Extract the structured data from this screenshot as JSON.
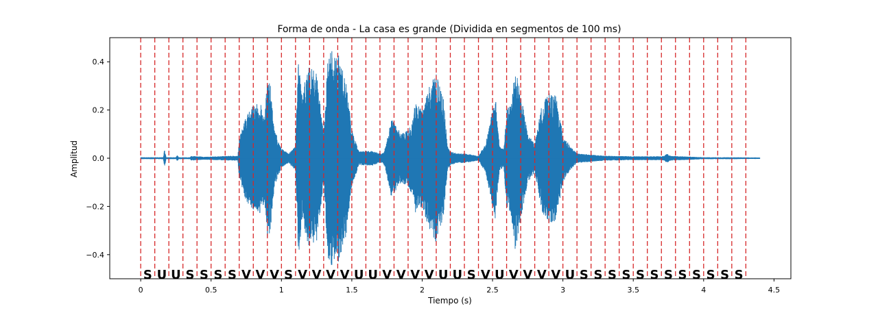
{
  "chart_data": {
    "type": "line",
    "title": "Forma de onda - La casa es grande (Dividida en segmentos de 100 ms)",
    "xlabel": "Tiempo (s)",
    "ylabel": "Amplitud",
    "xlim": [
      -0.22,
      4.62
    ],
    "ylim": [
      -0.5,
      0.5
    ],
    "xticks": [
      0,
      0.5,
      1,
      1.5,
      2,
      2.5,
      3,
      3.5,
      4,
      4.5
    ],
    "xtick_labels": [
      "0",
      "0.5",
      "1",
      "1.5",
      "2",
      "2.5",
      "3",
      "3.5",
      "4",
      "4.5"
    ],
    "yticks": [
      -0.4,
      -0.2,
      0.0,
      0.2,
      0.4
    ],
    "ytick_labels": [
      "−0.4",
      "−0.2",
      "0.0",
      "0.2",
      "0.4"
    ],
    "grid": false,
    "waveform_color": "#1f77b4",
    "segment_line_color": "#d62728",
    "segment_boundaries": [
      0,
      0.1,
      0.2,
      0.3,
      0.4,
      0.5,
      0.6,
      0.7,
      0.8,
      0.9,
      1.0,
      1.1,
      1.2,
      1.3,
      1.4,
      1.5,
      1.6,
      1.7,
      1.8,
      1.9,
      2.0,
      2.1,
      2.2,
      2.3,
      2.4,
      2.5,
      2.6,
      2.7,
      2.8,
      2.9,
      3.0,
      3.1,
      3.2,
      3.3,
      3.4,
      3.5,
      3.6,
      3.7,
      3.8,
      3.9,
      4.0,
      4.1,
      4.2,
      4.3
    ],
    "segment_labels": [
      "S",
      "U",
      "U",
      "S",
      "S",
      "S",
      "S",
      "V",
      "V",
      "V",
      "S",
      "V",
      "V",
      "V",
      "V",
      "U",
      "U",
      "V",
      "V",
      "V",
      "V",
      "U",
      "U",
      "S",
      "V",
      "U",
      "V",
      "V",
      "V",
      "V",
      "U",
      "S",
      "S",
      "S",
      "S",
      "S",
      "S",
      "S",
      "S",
      "S",
      "S",
      "S",
      "S"
    ],
    "envelope": {
      "t": [
        0,
        0.16,
        0.17,
        0.18,
        0.25,
        0.26,
        0.27,
        0.35,
        0.36,
        0.45,
        0.55,
        0.65,
        0.69,
        0.7,
        0.75,
        0.8,
        0.85,
        0.88,
        0.9,
        0.92,
        0.95,
        1.0,
        1.05,
        1.1,
        1.12,
        1.15,
        1.18,
        1.2,
        1.25,
        1.3,
        1.33,
        1.36,
        1.38,
        1.4,
        1.43,
        1.46,
        1.5,
        1.55,
        1.65,
        1.7,
        1.72,
        1.74,
        1.78,
        1.8,
        1.85,
        1.9,
        1.93,
        1.95,
        2.0,
        2.05,
        2.1,
        2.15,
        2.18,
        2.2,
        2.25,
        2.3,
        2.4,
        2.45,
        2.5,
        2.52,
        2.55,
        2.58,
        2.6,
        2.63,
        2.66,
        2.7,
        2.75,
        2.8,
        2.85,
        2.9,
        2.95,
        3.0,
        3.05,
        3.1,
        3.3,
        3.5,
        3.7,
        3.72,
        3.74,
        3.76,
        4.0,
        4.2,
        4.4
      ],
      "amp": [
        0.004,
        0.004,
        0.04,
        0.004,
        0.004,
        0.012,
        0.004,
        0.004,
        0.01,
        0.006,
        0.008,
        0.01,
        0.01,
        0.08,
        0.18,
        0.22,
        0.23,
        0.18,
        0.33,
        0.31,
        0.12,
        0.04,
        0.02,
        0.05,
        0.43,
        0.25,
        0.37,
        0.38,
        0.35,
        0.1,
        0.41,
        0.47,
        0.42,
        0.44,
        0.38,
        0.32,
        0.12,
        0.03,
        0.03,
        0.02,
        0.02,
        0.05,
        0.16,
        0.15,
        0.1,
        0.12,
        0.15,
        0.23,
        0.2,
        0.3,
        0.35,
        0.25,
        0.05,
        0.03,
        0.02,
        0.02,
        0.01,
        0.06,
        0.2,
        0.26,
        0.05,
        0.04,
        0.2,
        0.23,
        0.38,
        0.27,
        0.1,
        0.06,
        0.22,
        0.27,
        0.26,
        0.1,
        0.05,
        0.02,
        0.01,
        0.008,
        0.008,
        0.01,
        0.02,
        0.01,
        0.004,
        0.004,
        0.003
      ]
    }
  }
}
